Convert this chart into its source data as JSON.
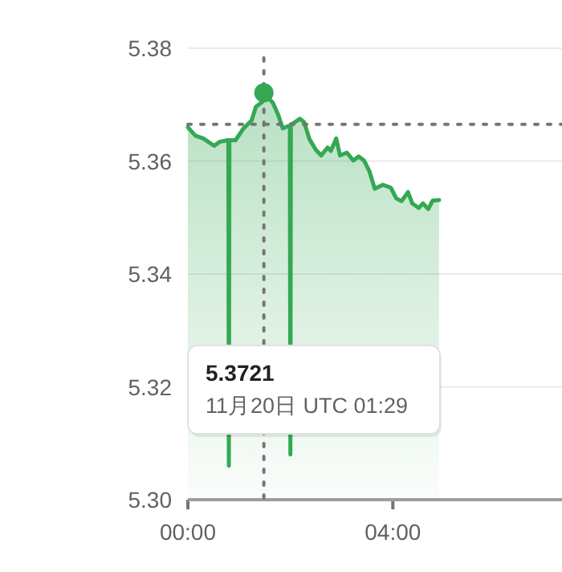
{
  "chart_data": {
    "type": "area",
    "x": [
      0,
      0.146,
      0.303,
      0.512,
      0.617,
      0.773,
      0.79,
      0.8,
      0.81,
      0.93,
      1.087,
      1.243,
      1.327,
      1.452,
      1.483,
      1.661,
      1.766,
      1.85,
      1.954,
      1.99,
      2.0,
      2.01,
      2.027,
      2.184,
      2.267,
      2.372,
      2.497,
      2.602,
      2.727,
      2.79,
      2.894,
      2.968,
      3.103,
      3.229,
      3.333,
      3.438,
      3.542,
      3.647,
      3.804,
      3.96,
      4.065,
      4.169,
      4.295,
      4.378,
      4.504,
      4.587,
      4.692,
      4.775,
      4.901
    ],
    "series": [
      {
        "color": "#34a853",
        "values": [
          5.366,
          5.3645,
          5.364,
          5.3627,
          5.3634,
          5.3637,
          5.3637,
          5.306,
          5.3637,
          5.3637,
          5.3658,
          5.3672,
          5.3696,
          5.3705,
          5.3721,
          5.3703,
          5.3681,
          5.3658,
          5.3662,
          5.3662,
          5.308,
          5.3665,
          5.3665,
          5.3675,
          5.3669,
          5.3639,
          5.362,
          5.361,
          5.3624,
          5.3618,
          5.364,
          5.361,
          5.3615,
          5.3601,
          5.3608,
          5.3601,
          5.3582,
          5.3551,
          5.3558,
          5.3553,
          5.3534,
          5.3529,
          5.3545,
          5.3525,
          5.3517,
          5.3525,
          5.3515,
          5.353,
          5.3531
        ]
      }
    ],
    "xlim": [
      0,
      7.3
    ],
    "xticks": [
      {
        "value": 0,
        "label": "00:00"
      },
      {
        "value": 4,
        "label": "04:00"
      }
    ],
    "ylim": [
      5.3,
      5.38
    ],
    "yticks": [
      {
        "value": 5.3,
        "label": "5.30"
      },
      5.32,
      5.34,
      5.36,
      5.38
    ],
    "grid": "y",
    "ref_lines": [
      {
        "axis": "y",
        "value": 5.3665,
        "line_style": "dotted",
        "color": "#757575"
      },
      {
        "axis": "x",
        "value": 1.483,
        "line_style": "dotted",
        "color": "#757575"
      }
    ],
    "annotations": [
      "5.3721",
      "11月20日 UTC 01:29"
    ]
  }
}
